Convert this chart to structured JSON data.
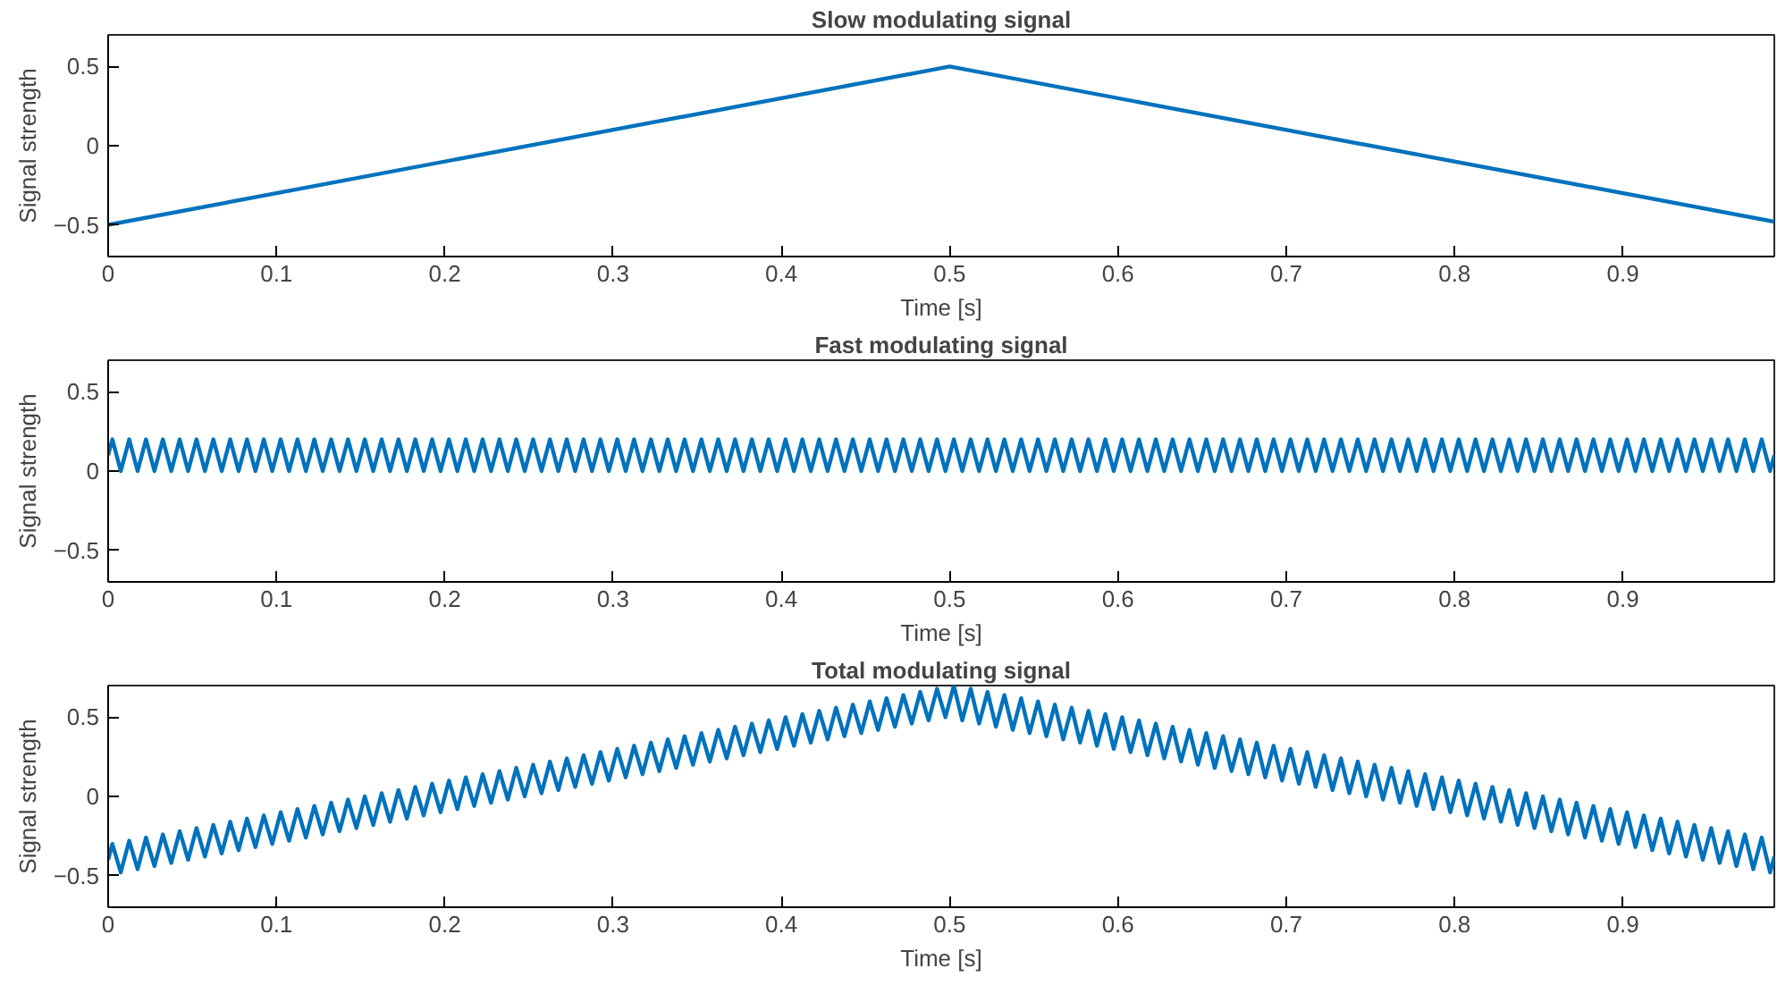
{
  "chart_data": [
    {
      "type": "line",
      "title": "Slow modulating signal",
      "xlabel": "Time [s]",
      "ylabel": "Signal strength",
      "xlim": [
        0,
        0.99
      ],
      "ylim": [
        -0.7,
        0.7
      ],
      "xticks": [
        0,
        0.1,
        0.2,
        0.3,
        0.4,
        0.5,
        0.6,
        0.7,
        0.8,
        0.9
      ],
      "yticks": [
        -0.5,
        0,
        0.5
      ],
      "grid": false,
      "series": [
        {
          "color": "#0072bd",
          "x": [
            0,
            0.5,
            0.99
          ],
          "values": [
            -0.5,
            0.5,
            -0.48
          ]
        }
      ]
    },
    {
      "type": "line",
      "title": "Fast modulating signal",
      "xlabel": "Time [s]",
      "ylabel": "Signal strength",
      "xlim": [
        0,
        0.99
      ],
      "ylim": [
        -0.7,
        0.7
      ],
      "xticks": [
        0,
        0.1,
        0.2,
        0.3,
        0.4,
        0.5,
        0.6,
        0.7,
        0.8,
        0.9
      ],
      "yticks": [
        -0.5,
        0,
        0.5
      ],
      "grid": false,
      "x": [
        0,
        0.0025,
        0.0075,
        0.0125,
        0.0175,
        0.0225,
        0.0275,
        0.0325,
        0.0375,
        0.0425,
        0.0475,
        0.0525,
        0.0575,
        0.0625,
        0.0675,
        0.0725,
        0.0775,
        0.0825,
        0.0875,
        0.0925,
        0.0975,
        0.1025,
        0.1075,
        0.1125,
        0.1175,
        0.1225,
        0.1275,
        0.1325,
        0.1375,
        0.1425,
        0.1475,
        0.1525,
        0.1575,
        0.1625,
        0.1675,
        0.1725,
        0.1775,
        0.1825,
        0.1875,
        0.1925,
        0.1975,
        0.2025,
        0.2075,
        0.2125,
        0.2175,
        0.2225,
        0.2275,
        0.2325,
        0.2375,
        0.2425,
        0.2475,
        0.2525,
        0.2575,
        0.2625,
        0.2675,
        0.2725,
        0.2775,
        0.2825,
        0.2875,
        0.2925,
        0.2975,
        0.3025,
        0.3075,
        0.3125,
        0.3175,
        0.3225,
        0.3275,
        0.3325,
        0.3375,
        0.3425,
        0.3475,
        0.3525,
        0.3575,
        0.3625,
        0.3675,
        0.3725,
        0.3775,
        0.3825,
        0.3875,
        0.3925,
        0.3975,
        0.4025,
        0.4075,
        0.4125,
        0.4175,
        0.4225,
        0.4275,
        0.4325,
        0.4375,
        0.4425,
        0.4475,
        0.4525,
        0.4575,
        0.4625,
        0.4675,
        0.4725,
        0.4775,
        0.4825,
        0.4875,
        0.4925,
        0.4975,
        0.5025,
        0.5075,
        0.5125,
        0.5175,
        0.5225,
        0.5275,
        0.5325,
        0.5375,
        0.5425,
        0.5475,
        0.5525,
        0.5575,
        0.5625,
        0.5675,
        0.5725,
        0.5775,
        0.5825,
        0.5875,
        0.5925,
        0.5975,
        0.6025,
        0.6075,
        0.6125,
        0.6175,
        0.6225,
        0.6275,
        0.6325,
        0.6375,
        0.6425,
        0.6475,
        0.6525,
        0.6575,
        0.6625,
        0.6675,
        0.6725,
        0.6775,
        0.6825,
        0.6875,
        0.6925,
        0.6975,
        0.7025,
        0.7075,
        0.7125,
        0.7175,
        0.7225,
        0.7275,
        0.7325,
        0.7375,
        0.7425,
        0.7475,
        0.7525,
        0.7575,
        0.7625,
        0.7675,
        0.7725,
        0.7775,
        0.7825,
        0.7875,
        0.7925,
        0.7975,
        0.8025,
        0.8075,
        0.8125,
        0.8175,
        0.8225,
        0.8275,
        0.8325,
        0.8375,
        0.8425,
        0.8475,
        0.8525,
        0.8575,
        0.8625,
        0.8675,
        0.8725,
        0.8775,
        0.8825,
        0.8875,
        0.8925,
        0.8975,
        0.9025,
        0.9075,
        0.9125,
        0.9175,
        0.9225,
        0.9275,
        0.9325,
        0.9375,
        0.9425,
        0.9475,
        0.9525,
        0.9575,
        0.9625,
        0.9675,
        0.9725,
        0.9775,
        0.9825,
        0.9875,
        0.99
      ],
      "series": [
        {
          "color": "#0072bd",
          "values": [
            0.1,
            0.2,
            0,
            0.2,
            0,
            0.2,
            0,
            0.2,
            0,
            0.2,
            0,
            0.2,
            0,
            0.2,
            0,
            0.2,
            0,
            0.2,
            0,
            0.2,
            0,
            0.2,
            0,
            0.2,
            0,
            0.2,
            0,
            0.2,
            0,
            0.2,
            0,
            0.2,
            0,
            0.2,
            0,
            0.2,
            0,
            0.2,
            0,
            0.2,
            0,
            0.2,
            0,
            0.2,
            0,
            0.2,
            0,
            0.2,
            0,
            0.2,
            0,
            0.2,
            0,
            0.2,
            0,
            0.2,
            0,
            0.2,
            0,
            0.2,
            0,
            0.2,
            0,
            0.2,
            0,
            0.2,
            0,
            0.2,
            0,
            0.2,
            0,
            0.2,
            0,
            0.2,
            0,
            0.2,
            0,
            0.2,
            0,
            0.2,
            0,
            0.2,
            0,
            0.2,
            0,
            0.2,
            0,
            0.2,
            0,
            0.2,
            0,
            0.2,
            0,
            0.2,
            0,
            0.2,
            0,
            0.2,
            0,
            0.2,
            0,
            0.2,
            0,
            0.2,
            0,
            0.2,
            0,
            0.2,
            0,
            0.2,
            0,
            0.2,
            0,
            0.2,
            0,
            0.2,
            0,
            0.2,
            0,
            0.2,
            0,
            0.2,
            0,
            0.2,
            0,
            0.2,
            0,
            0.2,
            0,
            0.2,
            0,
            0.2,
            0,
            0.2,
            0,
            0.2,
            0,
            0.2,
            0,
            0.2,
            0,
            0.2,
            0,
            0.2,
            0,
            0.2,
            0,
            0.2,
            0,
            0.2,
            0,
            0.2,
            0,
            0.2,
            0,
            0.2,
            0,
            0.2,
            0,
            0.2,
            0,
            0.2,
            0,
            0.2,
            0,
            0.2,
            0,
            0.2,
            0,
            0.2,
            0,
            0.2,
            0,
            0.2,
            0,
            0.2,
            0,
            0.2,
            0,
            0.2,
            0,
            0.2,
            0,
            0.2,
            0,
            0.2,
            0,
            0.2,
            0,
            0.2,
            0,
            0.2,
            0,
            0.2,
            0,
            0.2,
            0,
            0.2,
            0,
            0.1
          ]
        }
      ]
    },
    {
      "type": "line",
      "title": "Total modulating signal",
      "xlabel": "Time [s]",
      "ylabel": "Signal strength",
      "xlim": [
        0,
        0.99
      ],
      "ylim": [
        -0.7,
        0.7
      ],
      "xticks": [
        0,
        0.1,
        0.2,
        0.3,
        0.4,
        0.5,
        0.6,
        0.7,
        0.8,
        0.9
      ],
      "yticks": [
        -0.5,
        0,
        0.5
      ],
      "grid": false,
      "x": [
        0,
        0.0025,
        0.0075,
        0.0125,
        0.0175,
        0.0225,
        0.0275,
        0.0325,
        0.0375,
        0.0425,
        0.0475,
        0.0525,
        0.0575,
        0.0625,
        0.0675,
        0.0725,
        0.0775,
        0.0825,
        0.0875,
        0.0925,
        0.0975,
        0.1025,
        0.1075,
        0.1125,
        0.1175,
        0.1225,
        0.1275,
        0.1325,
        0.1375,
        0.1425,
        0.1475,
        0.1525,
        0.1575,
        0.1625,
        0.1675,
        0.1725,
        0.1775,
        0.1825,
        0.1875,
        0.1925,
        0.1975,
        0.2025,
        0.2075,
        0.2125,
        0.2175,
        0.2225,
        0.2275,
        0.2325,
        0.2375,
        0.2425,
        0.2475,
        0.2525,
        0.2575,
        0.2625,
        0.2675,
        0.2725,
        0.2775,
        0.2825,
        0.2875,
        0.2925,
        0.2975,
        0.3025,
        0.3075,
        0.3125,
        0.3175,
        0.3225,
        0.3275,
        0.3325,
        0.3375,
        0.3425,
        0.3475,
        0.3525,
        0.3575,
        0.3625,
        0.3675,
        0.3725,
        0.3775,
        0.3825,
        0.3875,
        0.3925,
        0.3975,
        0.4025,
        0.4075,
        0.4125,
        0.4175,
        0.4225,
        0.4275,
        0.4325,
        0.4375,
        0.4425,
        0.4475,
        0.4525,
        0.4575,
        0.4625,
        0.4675,
        0.4725,
        0.4775,
        0.4825,
        0.4875,
        0.4925,
        0.4975,
        0.5025,
        0.5075,
        0.5125,
        0.5175,
        0.5225,
        0.5275,
        0.5325,
        0.5375,
        0.5425,
        0.5475,
        0.5525,
        0.5575,
        0.5625,
        0.5675,
        0.5725,
        0.5775,
        0.5825,
        0.5875,
        0.5925,
        0.5975,
        0.6025,
        0.6075,
        0.6125,
        0.6175,
        0.6225,
        0.6275,
        0.6325,
        0.6375,
        0.6425,
        0.6475,
        0.6525,
        0.6575,
        0.6625,
        0.6675,
        0.6725,
        0.6775,
        0.6825,
        0.6875,
        0.6925,
        0.6975,
        0.7025,
        0.7075,
        0.7125,
        0.7175,
        0.7225,
        0.7275,
        0.7325,
        0.7375,
        0.7425,
        0.7475,
        0.7525,
        0.7575,
        0.7625,
        0.7675,
        0.7725,
        0.7775,
        0.7825,
        0.7875,
        0.7925,
        0.7975,
        0.8025,
        0.8075,
        0.8125,
        0.8175,
        0.8225,
        0.8275,
        0.8325,
        0.8375,
        0.8425,
        0.8475,
        0.8525,
        0.8575,
        0.8625,
        0.8675,
        0.8725,
        0.8775,
        0.8825,
        0.8875,
        0.8925,
        0.8975,
        0.9025,
        0.9075,
        0.9125,
        0.9175,
        0.9225,
        0.9275,
        0.9325,
        0.9375,
        0.9425,
        0.9475,
        0.9525,
        0.9575,
        0.9625,
        0.9675,
        0.9725,
        0.9775,
        0.9825,
        0.9875,
        0.99
      ],
      "series": [
        {
          "color": "#0072bd",
          "values": [
            -0.4,
            -0.3,
            -0.48,
            -0.28,
            -0.46,
            -0.26,
            -0.44,
            -0.24,
            -0.42,
            -0.22,
            -0.4,
            -0.2,
            -0.38,
            -0.18,
            -0.36,
            -0.16,
            -0.34,
            -0.14,
            -0.32,
            -0.12,
            -0.3,
            -0.1,
            -0.28,
            -0.08,
            -0.26,
            -0.06,
            -0.24,
            -0.04,
            -0.22,
            -0.02,
            -0.2,
            0,
            -0.18,
            0.02,
            -0.16,
            0.04,
            -0.14,
            0.06,
            -0.12,
            0.08,
            -0.1,
            0.1,
            -0.08,
            0.12,
            -0.06,
            0.14,
            -0.04,
            0.16,
            -0.02,
            0.18,
            0,
            0.2,
            0.02,
            0.22,
            0.04,
            0.24,
            0.06,
            0.26,
            0.08,
            0.28,
            0.1,
            0.3,
            0.12,
            0.32,
            0.14,
            0.34,
            0.16,
            0.36,
            0.18,
            0.38,
            0.2,
            0.4,
            0.22,
            0.42,
            0.24,
            0.44,
            0.26,
            0.46,
            0.28,
            0.48,
            0.3,
            0.5,
            0.32,
            0.52,
            0.34,
            0.54,
            0.36,
            0.56,
            0.38,
            0.58,
            0.4,
            0.6,
            0.42,
            0.62,
            0.44,
            0.64,
            0.46,
            0.66,
            0.48,
            0.68,
            0.5,
            0.7,
            0.48,
            0.68,
            0.46,
            0.66,
            0.44,
            0.64,
            0.42,
            0.62,
            0.4,
            0.6,
            0.38,
            0.58,
            0.36,
            0.56,
            0.34,
            0.54,
            0.32,
            0.52,
            0.3,
            0.5,
            0.28,
            0.48,
            0.26,
            0.46,
            0.24,
            0.44,
            0.22,
            0.42,
            0.2,
            0.4,
            0.18,
            0.38,
            0.16,
            0.36,
            0.14,
            0.34,
            0.12,
            0.32,
            0.1,
            0.3,
            0.08,
            0.28,
            0.06,
            0.26,
            0.04,
            0.24,
            0.02,
            0.22,
            0,
            0.2,
            -0.02,
            0.18,
            -0.04,
            0.16,
            -0.06,
            0.14,
            -0.08,
            0.12,
            -0.1,
            0.1,
            -0.12,
            0.08,
            -0.14,
            0.06,
            -0.16,
            0.04,
            -0.18,
            0.02,
            -0.2,
            0,
            -0.22,
            -0.02,
            -0.24,
            -0.04,
            -0.26,
            -0.06,
            -0.28,
            -0.08,
            -0.3,
            -0.1,
            -0.32,
            -0.12,
            -0.34,
            -0.14,
            -0.36,
            -0.16,
            -0.38,
            -0.18,
            -0.4,
            -0.2,
            -0.42,
            -0.22,
            -0.44,
            -0.24,
            -0.46,
            -0.26,
            -0.48,
            -0.38
          ]
        }
      ]
    }
  ]
}
